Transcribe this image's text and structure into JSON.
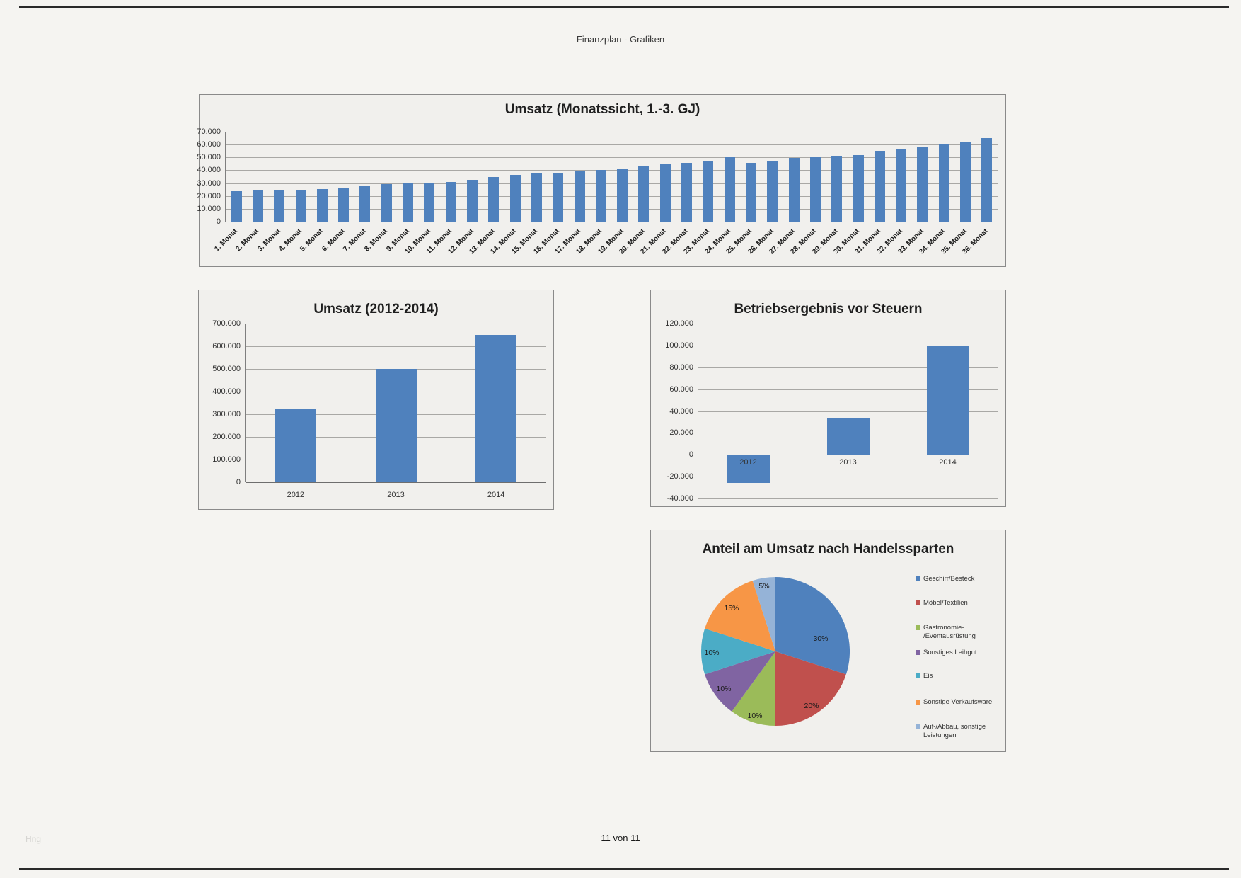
{
  "page": {
    "header": "Finanzplan - Grafiken",
    "footer": "11 von 11",
    "watermark": "Hng"
  },
  "colors": {
    "bar_fill": "#4f81bd",
    "gridline": "#a9a8a5",
    "panel_background": "#f1f0ed",
    "panel_border": "#8a8a8a"
  },
  "chart_data": [
    {
      "type": "bar",
      "title": "Umsatz (Monatssicht, 1.-3. GJ)",
      "categories": [
        "1. Monat",
        "2. Monat",
        "3. Monat",
        "4. Monat",
        "5. Monat",
        "6. Monat",
        "7. Monat",
        "8. Monat",
        "9. Monat",
        "10. Monat",
        "11. Monat",
        "12. Monat",
        "13. Monat",
        "14. Monat",
        "15. Monat",
        "16. Monat",
        "17. Monat",
        "18. Monat",
        "19. Monat",
        "20. Monat",
        "21. Monat",
        "22. Monat",
        "23. Monat",
        "24. Monat",
        "25. Monat",
        "26. Monat",
        "27. Monat",
        "28. Monat",
        "29. Monat",
        "30. Monat",
        "31. Monat",
        "32. Monat",
        "33. Monat",
        "34. Monat",
        "35. Monat",
        "36. Monat"
      ],
      "values": [
        23500,
        24000,
        25000,
        25000,
        25500,
        26000,
        27500,
        29000,
        30000,
        30500,
        31000,
        32500,
        35000,
        36500,
        37500,
        38000,
        39500,
        40000,
        41500,
        43000,
        44500,
        46000,
        47500,
        50000,
        46000,
        47500,
        49500,
        50000,
        51000,
        52000,
        55000,
        56500,
        58500,
        60000,
        62000,
        65000
      ],
      "xlabel": "",
      "ylabel": "",
      "ylim": [
        0,
        70000
      ],
      "ytick_step": 10000,
      "ytick_labels": [
        "0",
        "10.000",
        "20.000",
        "30.000",
        "40.000",
        "50.000",
        "60.000",
        "70.000"
      ],
      "grid": true,
      "legend_position": "none"
    },
    {
      "type": "bar",
      "title": "Umsatz (2012-2014)",
      "categories": [
        "2012",
        "2013",
        "2014"
      ],
      "values": [
        325000,
        500000,
        650000
      ],
      "xlabel": "",
      "ylabel": "",
      "ylim": [
        0,
        700000
      ],
      "ytick_step": 100000,
      "ytick_labels": [
        "0",
        "100.000",
        "200.000",
        "300.000",
        "400.000",
        "500.000",
        "600.000",
        "700.000"
      ],
      "grid": true,
      "legend_position": "none"
    },
    {
      "type": "bar",
      "title": "Betriebsergebnis vor Steuern",
      "categories": [
        "2012",
        "2013",
        "2014"
      ],
      "values": [
        -26000,
        33000,
        100000
      ],
      "xlabel": "",
      "ylabel": "",
      "ylim": [
        -40000,
        120000
      ],
      "ytick_step": 20000,
      "ytick_labels": [
        "-40.000",
        "-20.000",
        "0",
        "20.000",
        "40.000",
        "60.000",
        "80.000",
        "100.000",
        "120.000"
      ],
      "grid": true,
      "legend_position": "none"
    },
    {
      "type": "pie",
      "title": "Anteil am Umsatz nach Handelssparten",
      "legend_position": "right",
      "slices": [
        {
          "label": "Geschirr/Besteck",
          "value": 30,
          "color": "#4f81bd",
          "legend_lines": [
            "Geschirr/Besteck"
          ],
          "label_pos": [
            172,
            90
          ]
        },
        {
          "label": "Möbel/Textilien",
          "value": 20,
          "color": "#c0504d",
          "legend_lines": [
            "Möbel/Textilien"
          ],
          "label_pos": [
            159,
            185
          ]
        },
        {
          "label": "Gastronomie-/Eventausrüstung",
          "value": 10,
          "color": "#9bbb59",
          "legend_lines": [
            "Gastronomie-",
            "/Eventausrüstung"
          ],
          "label_pos": [
            79,
            199
          ]
        },
        {
          "label": "Sonstiges Leihgut",
          "value": 10,
          "color": "#8064a2",
          "legend_lines": [
            "Sonstiges Leihgut"
          ],
          "label_pos": [
            35,
            161
          ]
        },
        {
          "label": "Eis",
          "value": 10,
          "color": "#4bacc6",
          "legend_lines": [
            "Eis"
          ],
          "label_pos": [
            18,
            110
          ]
        },
        {
          "label": "Sonstige Verkaufsware",
          "value": 15,
          "color": "#f79646",
          "legend_lines": [
            "Sonstige Verkaufsware"
          ],
          "label_pos": [
            46,
            47
          ]
        },
        {
          "label": "Auf-/Abbau, sonstige Leistungen",
          "value": 5,
          "color": "#95b3d7",
          "legend_lines": [
            "Auf-/Abbau, sonstige",
            "Leistungen"
          ],
          "label_pos": [
            92,
            16
          ]
        }
      ]
    }
  ]
}
